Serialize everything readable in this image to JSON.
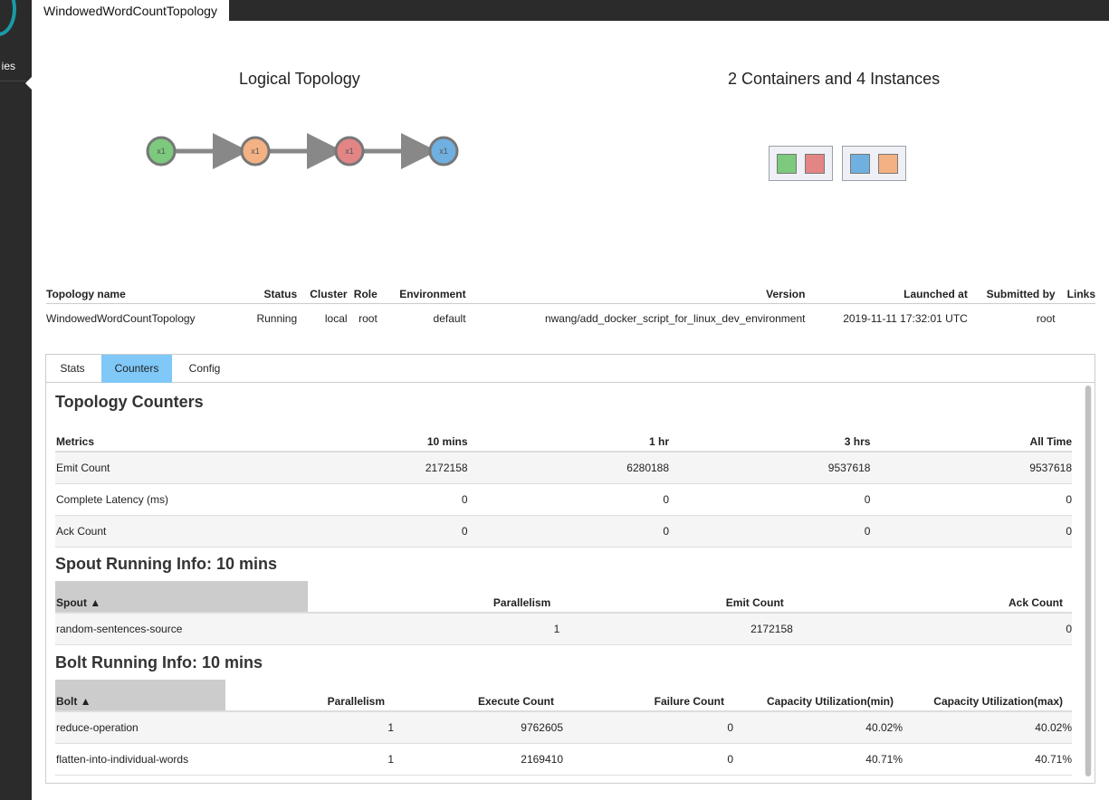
{
  "sidebar": {
    "nav_label": "ies"
  },
  "header": {
    "topology_tab": "WindowedWordCountTopology"
  },
  "logical": {
    "title": "Logical Topology",
    "nodes": [
      {
        "label": "x1",
        "color": "#7dc97d"
      },
      {
        "label": "x1",
        "color": "#f4b183"
      },
      {
        "label": "x1",
        "color": "#e48585"
      },
      {
        "label": "x1",
        "color": "#6fb0e0"
      }
    ]
  },
  "physical": {
    "title": "2 Containers and 4 Instances",
    "containers": [
      {
        "instances": [
          "#7dc97d",
          "#e48585"
        ]
      },
      {
        "instances": [
          "#6fb0e0",
          "#f4b183"
        ]
      }
    ]
  },
  "info": {
    "headers": [
      "Topology name",
      "Status",
      "Cluster",
      "Role",
      "Environment",
      "Version",
      "Launched at",
      "Submitted by",
      "Links"
    ],
    "row": [
      "WindowedWordCountTopology",
      "Running",
      "local",
      "root",
      "default",
      "nwang/add_docker_script_for_linux_dev_environment",
      "2019-11-11 17:32:01 UTC",
      "root",
      ""
    ]
  },
  "tabs": [
    "Stats",
    "Counters",
    "Config"
  ],
  "active_tab": "Counters",
  "counters": {
    "title": "Topology Counters",
    "headers": [
      "Metrics",
      "10 mins",
      "1 hr",
      "3 hrs",
      "All Time"
    ],
    "rows": [
      [
        "Emit Count",
        "2172158",
        "6280188",
        "9537618",
        "9537618"
      ],
      [
        "Complete Latency (ms)",
        "0",
        "0",
        "0",
        "0"
      ],
      [
        "Ack Count",
        "0",
        "0",
        "0",
        "0"
      ]
    ]
  },
  "spout": {
    "title": "Spout Running Info: 10 mins",
    "headers": [
      "Spout ▲",
      "Parallelism",
      "Emit Count",
      "Ack Count"
    ],
    "rows": [
      [
        "random-sentences-source",
        "1",
        "2172158",
        "0"
      ]
    ]
  },
  "bolt": {
    "title": "Bolt Running Info: 10 mins",
    "headers": [
      "Bolt ▲",
      "Parallelism",
      "Execute Count",
      "Failure Count",
      "Capacity Utilization(min)",
      "Capacity Utilization(max)"
    ],
    "rows": [
      [
        "reduce-operation",
        "1",
        "9762605",
        "0",
        "40.02%",
        "40.02%"
      ],
      [
        "flatten-into-individual-words",
        "1",
        "2169410",
        "0",
        "40.71%",
        "40.71%"
      ]
    ]
  }
}
